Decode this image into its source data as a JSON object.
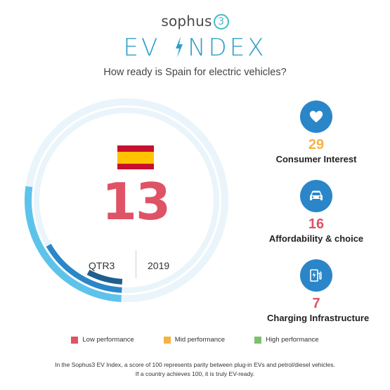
{
  "brand": {
    "name": "sophus",
    "number": "3"
  },
  "title": {
    "left": "EV",
    "right": "NDEX"
  },
  "subtitle": "How ready is Spain for electric vehicles?",
  "country": "Spain",
  "score": "13",
  "period": {
    "quarter": "QTR3",
    "year": "2019"
  },
  "gauge": {
    "max": 100,
    "score_level": 13
  },
  "metrics": [
    {
      "value": "29",
      "label": "Consumer Interest",
      "icon": "heart-icon",
      "color": "#f5b342"
    },
    {
      "value": "16",
      "label": "Affordability & choice",
      "icon": "car-icon",
      "color": "#e05266"
    },
    {
      "value": "7",
      "label": "Charging Infrastructure",
      "icon": "charging-station-icon",
      "color": "#e05266"
    }
  ],
  "legend": [
    {
      "label": "Low performance",
      "color": "#e05266"
    },
    {
      "label": "Mid performance",
      "color": "#f5b342"
    },
    {
      "label": "High performance",
      "color": "#7cc16a"
    }
  ],
  "footnote": {
    "line1": "In the Sophus3 EV Index, a score of 100 represents parity between plug-in EVs and petrol/diesel vehicles.",
    "line2": "If a country achieves 100, it is truly EV-ready."
  },
  "colors": {
    "accent_blue": "#2f9fc8",
    "icon_blue": "#2a86c8",
    "ring_light": "#e8f3fb"
  }
}
